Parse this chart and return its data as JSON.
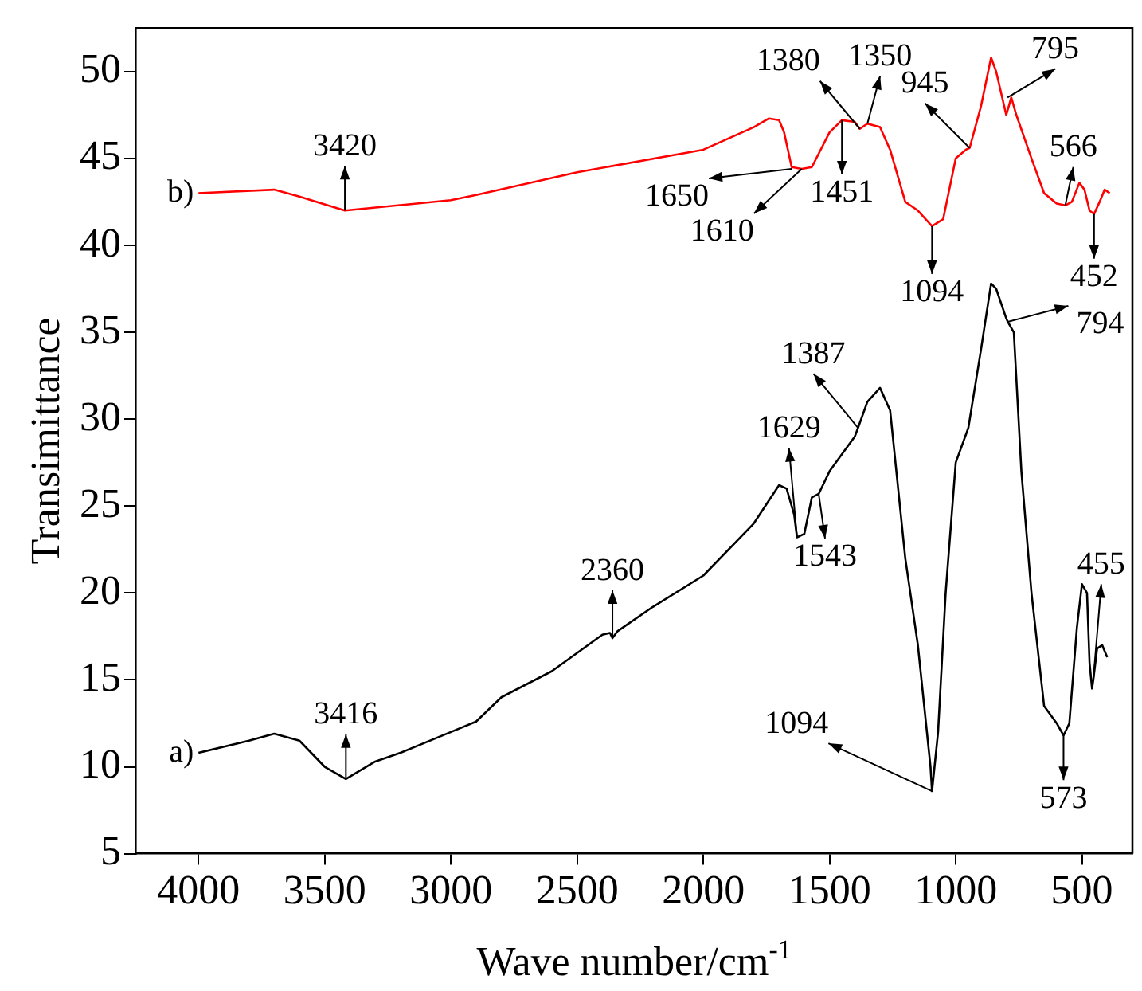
{
  "chart_data": {
    "type": "line",
    "xlabel": "Wave number/cm$^{-1}$",
    "ylabel": "Transimittance",
    "xlim": [
      4250,
      300
    ],
    "xticks": [
      4000,
      3500,
      3000,
      2500,
      2000,
      1500,
      1000,
      500
    ],
    "ylim": [
      5,
      52.5
    ],
    "yticks": [
      5,
      10,
      15,
      20,
      25,
      30,
      35,
      40,
      45,
      50
    ],
    "grid": false,
    "legend": false,
    "marker": "none",
    "line_style": "solid",
    "series": [
      {
        "name": "b)",
        "color": "#ff0000",
        "x": [
          4000,
          3700,
          3600,
          3420,
          3000,
          2900,
          2500,
          2000,
          1800,
          1740,
          1700,
          1680,
          1650,
          1610,
          1570,
          1500,
          1451,
          1400,
          1380,
          1350,
          1300,
          1260,
          1200,
          1150,
          1094,
          1050,
          1000,
          960,
          945,
          900,
          860,
          840,
          800,
          780,
          760,
          700,
          650,
          600,
          566,
          540,
          510,
          490,
          470,
          452,
          430,
          410,
          390
        ],
        "values": [
          43,
          43.2,
          42.8,
          42.0,
          42.6,
          42.9,
          44.2,
          45.5,
          46.8,
          47.3,
          47.2,
          46.5,
          44.5,
          44.4,
          44.5,
          46.5,
          47.2,
          47.1,
          46.7,
          47.0,
          46.8,
          45.5,
          42.5,
          42,
          41.1,
          41.5,
          45.0,
          45.5,
          45.6,
          48,
          50.8,
          50,
          47.5,
          48.5,
          47.5,
          45,
          43,
          42.4,
          42.3,
          42.5,
          43.6,
          43.2,
          42.0,
          41.8,
          42.5,
          43.2,
          43.0
        ]
      },
      {
        "name": "a)",
        "color": "#000000",
        "x": [
          4000,
          3800,
          3700,
          3600,
          3500,
          3416,
          3300,
          3200,
          3000,
          2900,
          2800,
          2600,
          2400,
          2370,
          2360,
          2340,
          2200,
          2000,
          1800,
          1700,
          1670,
          1640,
          1629,
          1600,
          1570,
          1543,
          1500,
          1400,
          1387,
          1350,
          1300,
          1260,
          1200,
          1150,
          1100,
          1094,
          1070,
          1040,
          1000,
          950,
          900,
          860,
          840,
          800,
          794,
          770,
          740,
          700,
          650,
          600,
          573,
          550,
          520,
          500,
          480,
          470,
          460,
          455,
          440,
          420,
          400
        ],
        "values": [
          10.8,
          11.5,
          11.9,
          11.5,
          10.0,
          9.3,
          10.3,
          10.8,
          12.0,
          12.6,
          14,
          15.5,
          17.6,
          17.7,
          17.4,
          17.8,
          19.2,
          21,
          24,
          26.2,
          26,
          24.5,
          23.2,
          23.4,
          25.5,
          25.7,
          27,
          29,
          29.5,
          31,
          31.8,
          30.5,
          22,
          17,
          10,
          8.6,
          12,
          20,
          27.5,
          29.5,
          34,
          37.8,
          37.5,
          35.8,
          35.6,
          35,
          27,
          20,
          13.5,
          12.5,
          11.8,
          12.5,
          18,
          20.5,
          20,
          16,
          14.5,
          15,
          16.8,
          17,
          16.3
        ]
      }
    ],
    "annotations": [
      {
        "text": "3420",
        "x": 3420,
        "y": 42.0
      },
      {
        "text": "1650",
        "x": 1650,
        "y": 44.4
      },
      {
        "text": "1610",
        "x": 1610,
        "y": 44.4
      },
      {
        "text": "1380",
        "x": 1380,
        "y": 46.7
      },
      {
        "text": "1350",
        "x": 1350,
        "y": 47.0
      },
      {
        "text": "1451",
        "x": 1451,
        "y": 47.2
      },
      {
        "text": "945",
        "x": 945,
        "y": 45.6
      },
      {
        "text": "1094",
        "x": 1094,
        "y": 41.1
      },
      {
        "text": "795",
        "x": 795,
        "y": 48.5
      },
      {
        "text": "566",
        "x": 566,
        "y": 42.3
      },
      {
        "text": "452",
        "x": 452,
        "y": 41.8
      },
      {
        "text": "3416",
        "x": 3416,
        "y": 9.3
      },
      {
        "text": "2360",
        "x": 2360,
        "y": 17.4
      },
      {
        "text": "1629",
        "x": 1629,
        "y": 23.2
      },
      {
        "text": "1543",
        "x": 1543,
        "y": 25.7
      },
      {
        "text": "1387",
        "x": 1387,
        "y": 29.5
      },
      {
        "text": "1094",
        "x": 1094,
        "y": 8.6
      },
      {
        "text": "794",
        "x": 794,
        "y": 35.6
      },
      {
        "text": "573",
        "x": 573,
        "y": 11.8
      },
      {
        "text": "455",
        "x": 455,
        "y": 15
      }
    ]
  }
}
